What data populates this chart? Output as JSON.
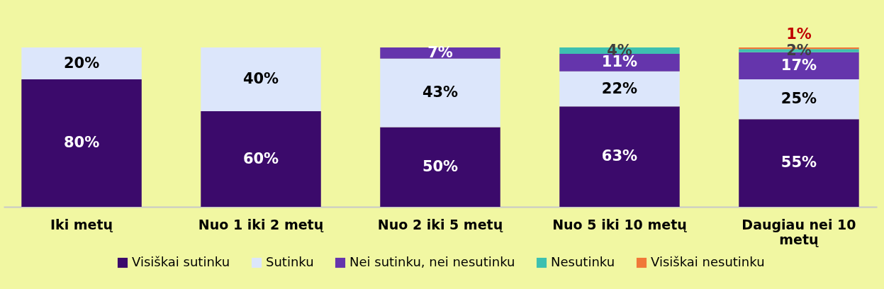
{
  "chart_data": {
    "type": "bar",
    "stacked": true,
    "categories": [
      "Iki metų",
      "Nuo 1 iki 2 metų",
      "Nuo 2 iki 5 metų",
      "Nuo 5 iki 10 metų",
      "Daugiau nei 10 metų"
    ],
    "series": [
      {
        "name": "Visiškai sutinku",
        "color": "#3b0a6b",
        "values": [
          80,
          60,
          50,
          63,
          55
        ],
        "value_labels": [
          "80%",
          "60%",
          "50%",
          "63%",
          "55%"
        ]
      },
      {
        "name": "Sutinku",
        "color": "#dce6fb",
        "values": [
          20,
          40,
          43,
          22,
          25
        ],
        "value_labels": [
          "20%",
          "40%",
          "43%",
          "22%",
          "25%"
        ]
      },
      {
        "name": "Nei sutinku, nei nesutinku",
        "color": "#6535ac",
        "values": [
          0,
          0,
          7,
          11,
          17
        ],
        "value_labels": [
          null,
          null,
          "7%",
          "11%",
          "17%"
        ]
      },
      {
        "name": "Nesutinku",
        "color": "#3dc0b0",
        "values": [
          0,
          0,
          0,
          4,
          2
        ],
        "value_labels": [
          null,
          null,
          null,
          "4%",
          "2%"
        ]
      },
      {
        "name": "Visiškai nesutinku",
        "color": "#f07838",
        "values": [
          0,
          0,
          0,
          0,
          1
        ],
        "value_labels": [
          null,
          null,
          null,
          null,
          "1%"
        ]
      }
    ],
    "legend": "bottom"
  }
}
